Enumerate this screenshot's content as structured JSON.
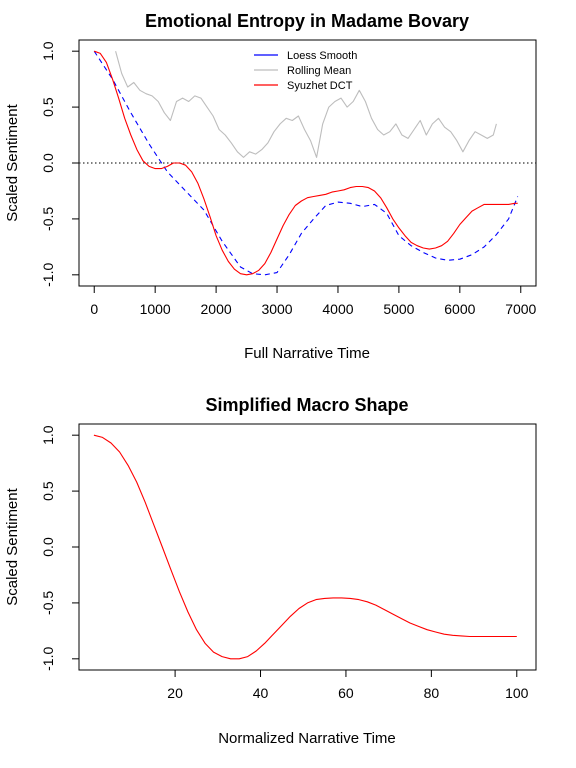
{
  "chart_data": [
    {
      "type": "line",
      "title": "Emotional Entropy in Madame Bovary",
      "xlabel": "Full Narrative Time",
      "ylabel": "Scaled Sentiment",
      "xlim": [
        -250,
        7250
      ],
      "ylim": [
        -1.1,
        1.1
      ],
      "x_ticks": [
        0,
        1000,
        2000,
        3000,
        4000,
        5000,
        6000,
        7000
      ],
      "x_tick_labels": [
        "0",
        "1000",
        "2000",
        "3000",
        "4000",
        "5000",
        "6000",
        "7000"
      ],
      "y_ticks": [
        1.0,
        0.5,
        0.0,
        -0.5,
        -1.0
      ],
      "y_tick_labels": [
        "1.0",
        "0.5",
        "0.0",
        "-0.5",
        "-1.0"
      ],
      "reference_line": {
        "y": 0,
        "style": "dotted",
        "color": "#333333"
      },
      "legend": {
        "position": "top-center",
        "entries": [
          {
            "label": "Loess Smooth",
            "color": "#0000ff"
          },
          {
            "label": "Rolling Mean",
            "color": "#bdbdbd"
          },
          {
            "label": "Syuzhet DCT",
            "color": "#ff0000"
          }
        ]
      },
      "series": [
        {
          "name": "Loess Smooth",
          "color": "#0000ff",
          "dash": "5,4",
          "x": [
            0,
            300,
            600,
            900,
            1200,
            1500,
            1800,
            2100,
            2400,
            2600,
            2800,
            3000,
            3200,
            3400,
            3600,
            3800,
            4000,
            4200,
            4400,
            4600,
            4800,
            5000,
            5200,
            5400,
            5600,
            5800,
            6000,
            6200,
            6400,
            6600,
            6800,
            6950
          ],
          "y": [
            1.0,
            0.75,
            0.45,
            0.17,
            -0.08,
            -0.25,
            -0.42,
            -0.7,
            -0.93,
            -0.99,
            -1.0,
            -0.98,
            -0.82,
            -0.63,
            -0.5,
            -0.38,
            -0.35,
            -0.36,
            -0.39,
            -0.37,
            -0.45,
            -0.65,
            -0.74,
            -0.8,
            -0.85,
            -0.87,
            -0.86,
            -0.82,
            -0.75,
            -0.64,
            -0.5,
            -0.3
          ]
        },
        {
          "name": "Rolling Mean",
          "color": "#bdbdbd",
          "x": [
            350,
            450,
            550,
            650,
            750,
            850,
            950,
            1050,
            1150,
            1250,
            1350,
            1450,
            1550,
            1650,
            1750,
            1850,
            1950,
            2050,
            2150,
            2250,
            2350,
            2450,
            2550,
            2650,
            2750,
            2850,
            2950,
            3050,
            3150,
            3250,
            3350,
            3450,
            3550,
            3650,
            3750,
            3850,
            3950,
            4050,
            4150,
            4250,
            4350,
            4450,
            4550,
            4650,
            4750,
            4850,
            4950,
            5050,
            5150,
            5250,
            5350,
            5450,
            5550,
            5650,
            5750,
            5850,
            5950,
            6050,
            6150,
            6250,
            6350,
            6450,
            6550,
            6600
          ],
          "y": [
            1.0,
            0.8,
            0.68,
            0.72,
            0.65,
            0.62,
            0.6,
            0.55,
            0.45,
            0.38,
            0.55,
            0.58,
            0.55,
            0.6,
            0.58,
            0.5,
            0.42,
            0.3,
            0.25,
            0.18,
            0.1,
            0.05,
            0.1,
            0.08,
            0.12,
            0.18,
            0.28,
            0.35,
            0.4,
            0.38,
            0.42,
            0.3,
            0.2,
            0.05,
            0.35,
            0.5,
            0.55,
            0.58,
            0.5,
            0.55,
            0.65,
            0.55,
            0.4,
            0.3,
            0.25,
            0.28,
            0.35,
            0.25,
            0.22,
            0.3,
            0.38,
            0.25,
            0.35,
            0.4,
            0.32,
            0.28,
            0.2,
            0.1,
            0.2,
            0.28,
            0.25,
            0.22,
            0.25,
            0.35
          ]
        },
        {
          "name": "Syuzhet DCT",
          "color": "#ff0000",
          "x": [
            0,
            100,
            200,
            300,
            400,
            500,
            600,
            700,
            800,
            900,
            1000,
            1100,
            1200,
            1300,
            1400,
            1500,
            1600,
            1700,
            1800,
            1900,
            2000,
            2100,
            2200,
            2300,
            2400,
            2500,
            2600,
            2700,
            2800,
            2900,
            3000,
            3100,
            3200,
            3300,
            3400,
            3500,
            3600,
            3700,
            3800,
            3900,
            4000,
            4100,
            4200,
            4300,
            4400,
            4500,
            4600,
            4700,
            4800,
            4900,
            5000,
            5100,
            5200,
            5300,
            5400,
            5500,
            5600,
            5700,
            5800,
            5900,
            6000,
            6100,
            6200,
            6300,
            6400,
            6500,
            6600,
            6700,
            6800,
            6900,
            6950
          ],
          "y": [
            1.0,
            0.98,
            0.9,
            0.75,
            0.58,
            0.4,
            0.25,
            0.12,
            0.02,
            -0.03,
            -0.05,
            -0.05,
            -0.03,
            0.0,
            0.0,
            -0.02,
            -0.08,
            -0.18,
            -0.32,
            -0.48,
            -0.65,
            -0.78,
            -0.88,
            -0.95,
            -0.99,
            -1.0,
            -0.99,
            -0.96,
            -0.9,
            -0.8,
            -0.68,
            -0.56,
            -0.46,
            -0.38,
            -0.34,
            -0.31,
            -0.3,
            -0.29,
            -0.28,
            -0.26,
            -0.25,
            -0.24,
            -0.22,
            -0.21,
            -0.21,
            -0.22,
            -0.25,
            -0.31,
            -0.4,
            -0.5,
            -0.58,
            -0.65,
            -0.71,
            -0.74,
            -0.76,
            -0.77,
            -0.76,
            -0.74,
            -0.7,
            -0.63,
            -0.55,
            -0.49,
            -0.43,
            -0.4,
            -0.37,
            -0.37,
            -0.37,
            -0.37,
            -0.37,
            -0.36,
            -0.36
          ]
        }
      ]
    },
    {
      "type": "line",
      "title": "Simplified Macro Shape",
      "xlabel": "Normalized Narrative Time",
      "ylabel": "Scaled Sentiment",
      "xlim": [
        -2.5,
        104.5
      ],
      "ylim": [
        -1.1,
        1.1
      ],
      "x_ticks": [
        20,
        40,
        60,
        80,
        100
      ],
      "x_tick_labels": [
        "20",
        "40",
        "60",
        "80",
        "100"
      ],
      "y_ticks": [
        1.0,
        0.5,
        0.0,
        -0.5,
        -1.0
      ],
      "y_tick_labels": [
        "1.0",
        "0.5",
        "0.0",
        "-0.5",
        "-1.0"
      ],
      "series": [
        {
          "color": "#ff0000",
          "x": [
            1,
            3,
            5,
            7,
            9,
            11,
            13,
            15,
            17,
            19,
            21,
            23,
            25,
            27,
            29,
            31,
            33,
            35,
            37,
            39,
            41,
            43,
            45,
            47,
            49,
            51,
            53,
            55,
            57,
            59,
            61,
            63,
            65,
            67,
            69,
            71,
            73,
            75,
            77,
            79,
            81,
            83,
            85,
            87,
            89,
            91,
            93,
            95,
            97,
            100
          ],
          "y": [
            1.0,
            0.98,
            0.93,
            0.85,
            0.73,
            0.58,
            0.4,
            0.2,
            0.0,
            -0.2,
            -0.4,
            -0.58,
            -0.74,
            -0.86,
            -0.94,
            -0.98,
            -1.0,
            -1.0,
            -0.98,
            -0.93,
            -0.86,
            -0.78,
            -0.7,
            -0.62,
            -0.55,
            -0.5,
            -0.47,
            -0.46,
            -0.455,
            -0.455,
            -0.46,
            -0.47,
            -0.49,
            -0.52,
            -0.56,
            -0.6,
            -0.64,
            -0.68,
            -0.71,
            -0.74,
            -0.76,
            -0.78,
            -0.79,
            -0.795,
            -0.8,
            -0.8,
            -0.8,
            -0.8,
            -0.8,
            -0.8
          ]
        }
      ]
    }
  ]
}
